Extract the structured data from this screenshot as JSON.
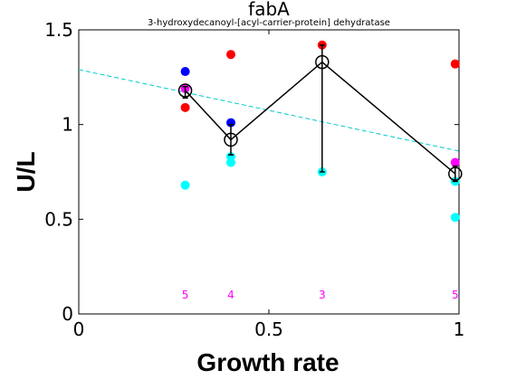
{
  "chart_data": {
    "type": "scatter",
    "title": "fabA",
    "subtitle": "3-hydroxydecanoyl-[acyl-carrier-protein] dehydratase",
    "xlabel": "Growth rate",
    "ylabel": "U/L",
    "xlim": [
      0,
      1.0
    ],
    "ylim": [
      0,
      1.5
    ],
    "xticks": [
      0,
      0.5,
      1
    ],
    "xtick_labels": [
      "0",
      "0.5",
      "1"
    ],
    "yticks": [
      0,
      0.5,
      1,
      1.5
    ],
    "ytick_labels": [
      "0",
      "0.5",
      "1",
      "1.5"
    ],
    "grid": false,
    "series": [
      {
        "color": "#0000ff",
        "points": [
          [
            0.28,
            1.28
          ],
          [
            0.4,
            1.01
          ]
        ]
      },
      {
        "color": "#ff0000",
        "points": [
          [
            0.28,
            1.09
          ],
          [
            0.4,
            1.37
          ],
          [
            0.64,
            1.42
          ],
          [
            0.99,
            1.32
          ]
        ]
      },
      {
        "color": "#ff00ff",
        "points": [
          [
            0.28,
            1.19
          ],
          [
            0.99,
            0.8
          ]
        ]
      },
      {
        "color": "#00ffff",
        "points": [
          [
            0.28,
            0.68
          ],
          [
            0.4,
            0.83
          ],
          [
            0.4,
            0.8
          ],
          [
            0.64,
            0.75
          ],
          [
            0.99,
            0.7
          ],
          [
            0.99,
            0.51
          ]
        ]
      }
    ],
    "mean_line": {
      "color": "#000000",
      "x": [
        0.28,
        0.4,
        0.64,
        0.99
      ],
      "y": [
        1.18,
        0.92,
        1.33,
        0.74
      ],
      "err_low": [
        1.14,
        0.84,
        0.75,
        0.7
      ],
      "err_high": [
        1.2,
        1.0,
        1.42,
        0.78
      ]
    },
    "trend_line": {
      "color": "#00cccc",
      "x": [
        0,
        1.0
      ],
      "y": [
        1.29,
        0.86
      ]
    },
    "counts": {
      "color": "#ff00ff",
      "y": 0.1,
      "x": [
        0.28,
        0.4,
        0.64,
        0.99
      ],
      "labels": [
        "5",
        "4",
        "3",
        "5"
      ]
    }
  }
}
